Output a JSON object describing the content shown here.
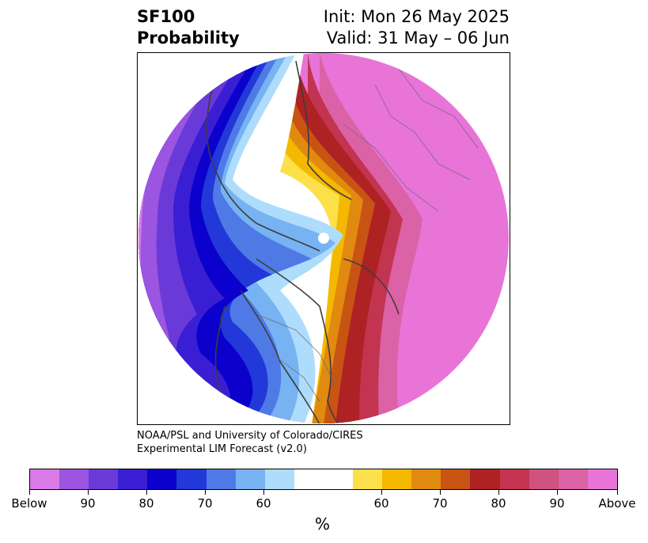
{
  "header": {
    "title_line1": "SF100",
    "title_line2": "Probability",
    "init_text": "Init: Mon 26 May 2025",
    "valid_text": "Valid: 31 May – 06 Jun"
  },
  "credit": {
    "line1": "NOAA/PSL and University of Colorado/CIRES",
    "line2": "Experimental LIM Forecast (v2.0)"
  },
  "colorbar": {
    "unit_label": "%",
    "tick_labels": [
      "Below",
      "90",
      "80",
      "70",
      "60",
      "60",
      "70",
      "80",
      "90",
      "Above"
    ],
    "colors": [
      "#d97ae6",
      "#9b55e0",
      "#6a3ad8",
      "#3a1ed4",
      "#0b00cc",
      "#2238d8",
      "#4f7ae6",
      "#77b2f2",
      "#aedcfc",
      "#ffffff",
      "#ffffff",
      "#fce04a",
      "#f5b800",
      "#e08a10",
      "#c85414",
      "#ae2224",
      "#c23450",
      "#d0527e",
      "#db62a6",
      "#e874d8"
    ]
  },
  "map": {
    "region": "Northern Hemisphere polar view",
    "colors": {
      "below_extreme": "#d97ae6",
      "below_90": "#9b55e0",
      "below_80": "#3a1ed4",
      "below_70": "#0b00cc",
      "below_60": "#77b2f2",
      "neutral": "#ffffff",
      "above_60": "#fce04a",
      "above_70": "#f5b800",
      "above_80": "#c85414",
      "above_90": "#ae2224",
      "above_extreme": "#e874d8"
    }
  }
}
